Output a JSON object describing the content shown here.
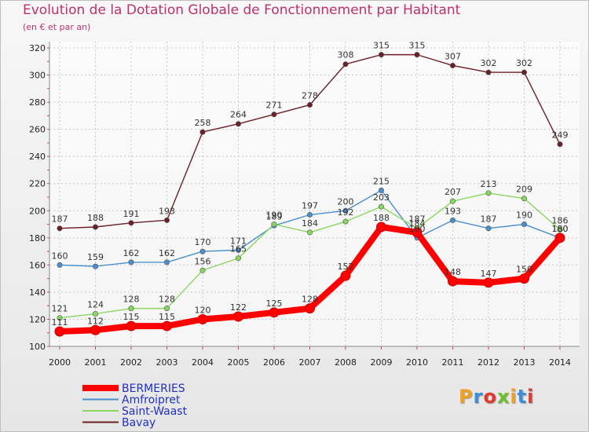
{
  "chart_title": "Evolution de la Dotation Globale de Fonctionnement par Habitant",
  "chart_subtitle": "(en € et par an)",
  "logo_text": "Proxiti",
  "chart_data": {
    "type": "line",
    "title": "Evolution de la Dotation Globale de Fonctionnement par Habitant",
    "subtitle": "(en € et par an)",
    "xlabel": "",
    "ylabel": "",
    "x": [
      "2000",
      "2001",
      "2002",
      "2003",
      "2004",
      "2005",
      "2006",
      "2007",
      "2008",
      "2009",
      "2010",
      "2011",
      "2012",
      "2013",
      "2014"
    ],
    "ylim": [
      100,
      320
    ],
    "yticks": [
      100,
      120,
      140,
      160,
      180,
      200,
      220,
      240,
      260,
      280,
      300,
      320
    ],
    "grid": true,
    "legend_position": "bottom-left",
    "series": [
      {
        "name": "BERMERIES",
        "color": "#ff0000",
        "values": [
          111,
          112,
          115,
          115,
          120,
          122,
          125,
          128,
          152,
          188,
          184,
          148,
          147,
          150,
          180
        ]
      },
      {
        "name": "Amfroipret",
        "color": "#4a8fd0",
        "values": [
          160,
          159,
          162,
          162,
          170,
          171,
          189,
          197,
          200,
          215,
          180,
          193,
          187,
          190,
          180
        ]
      },
      {
        "name": "Saint-Waast",
        "color": "#88d860",
        "values": [
          121,
          124,
          128,
          128,
          156,
          165,
          190,
          184,
          192,
          203,
          187,
          207,
          213,
          209,
          186
        ]
      },
      {
        "name": "Bavay",
        "color": "#6b1f26",
        "values": [
          187,
          188,
          191,
          193,
          258,
          264,
          271,
          278,
          308,
          315,
          315,
          307,
          302,
          302,
          249
        ]
      }
    ]
  }
}
